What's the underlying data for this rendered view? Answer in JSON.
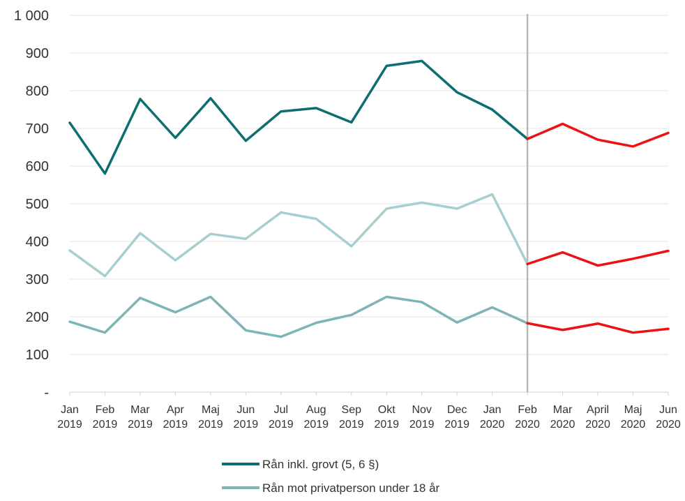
{
  "chart_data": {
    "type": "line",
    "title": "",
    "xlabel": "",
    "ylabel": "",
    "ylim": [
      0,
      1000
    ],
    "yticks": [
      {
        "value": 0,
        "label": "-"
      },
      {
        "value": 100,
        "label": "100"
      },
      {
        "value": 200,
        "label": "200"
      },
      {
        "value": 300,
        "label": "300"
      },
      {
        "value": 400,
        "label": "400"
      },
      {
        "value": 500,
        "label": "500"
      },
      {
        "value": 600,
        "label": "600"
      },
      {
        "value": 700,
        "label": "700"
      },
      {
        "value": 800,
        "label": "800"
      },
      {
        "value": 900,
        "label": "900"
      },
      {
        "value": 1000,
        "label": "1 000"
      }
    ],
    "grid": true,
    "categories": [
      [
        "Jan",
        "2019"
      ],
      [
        "Feb",
        "2019"
      ],
      [
        "Mar",
        "2019"
      ],
      [
        "Apr",
        "2019"
      ],
      [
        "Maj",
        "2019"
      ],
      [
        "Jun",
        "2019"
      ],
      [
        "Jul",
        "2019"
      ],
      [
        "Aug",
        "2019"
      ],
      [
        "Sep",
        "2019"
      ],
      [
        "Okt",
        "2019"
      ],
      [
        "Nov",
        "2019"
      ],
      [
        "Dec",
        "2019"
      ],
      [
        "Jan",
        "2020"
      ],
      [
        "Feb",
        "2020"
      ],
      [
        "Mar",
        "2020"
      ],
      [
        "April",
        "2020"
      ],
      [
        "Maj",
        "2020"
      ],
      [
        "Jun",
        "2020"
      ]
    ],
    "divider_at": "Feb 2020",
    "highlight_color": "#ee1111",
    "series": [
      {
        "name": "Rån inkl. grovt (5, 6 §)",
        "color": "#0d6e70",
        "in_legend": true,
        "values": [
          715,
          580,
          778,
          675,
          780,
          667,
          745,
          754,
          716,
          866,
          879,
          796,
          750,
          672,
          712,
          670,
          652,
          688
        ]
      },
      {
        "name": "",
        "color": "#a6cfd0",
        "in_legend": false,
        "values": [
          376,
          308,
          422,
          350,
          420,
          407,
          477,
          460,
          387,
          487,
          503,
          487,
          525,
          340,
          371,
          336,
          354,
          375
        ]
      },
      {
        "name": "Rån mot privatperson under 18 år",
        "color": "#7db5b6",
        "in_legend": true,
        "values": [
          187,
          158,
          250,
          212,
          253,
          164,
          147,
          184,
          205,
          253,
          239,
          185,
          225,
          183,
          165,
          182,
          158,
          168
        ]
      }
    ],
    "legend": {
      "position": "bottom-center",
      "entries": [
        {
          "label": "Rån inkl. grovt (5, 6 §)",
          "color": "#0d6e70"
        },
        {
          "label": "Rån mot privatperson under 18 år",
          "color": "#7db5b6"
        }
      ]
    }
  }
}
